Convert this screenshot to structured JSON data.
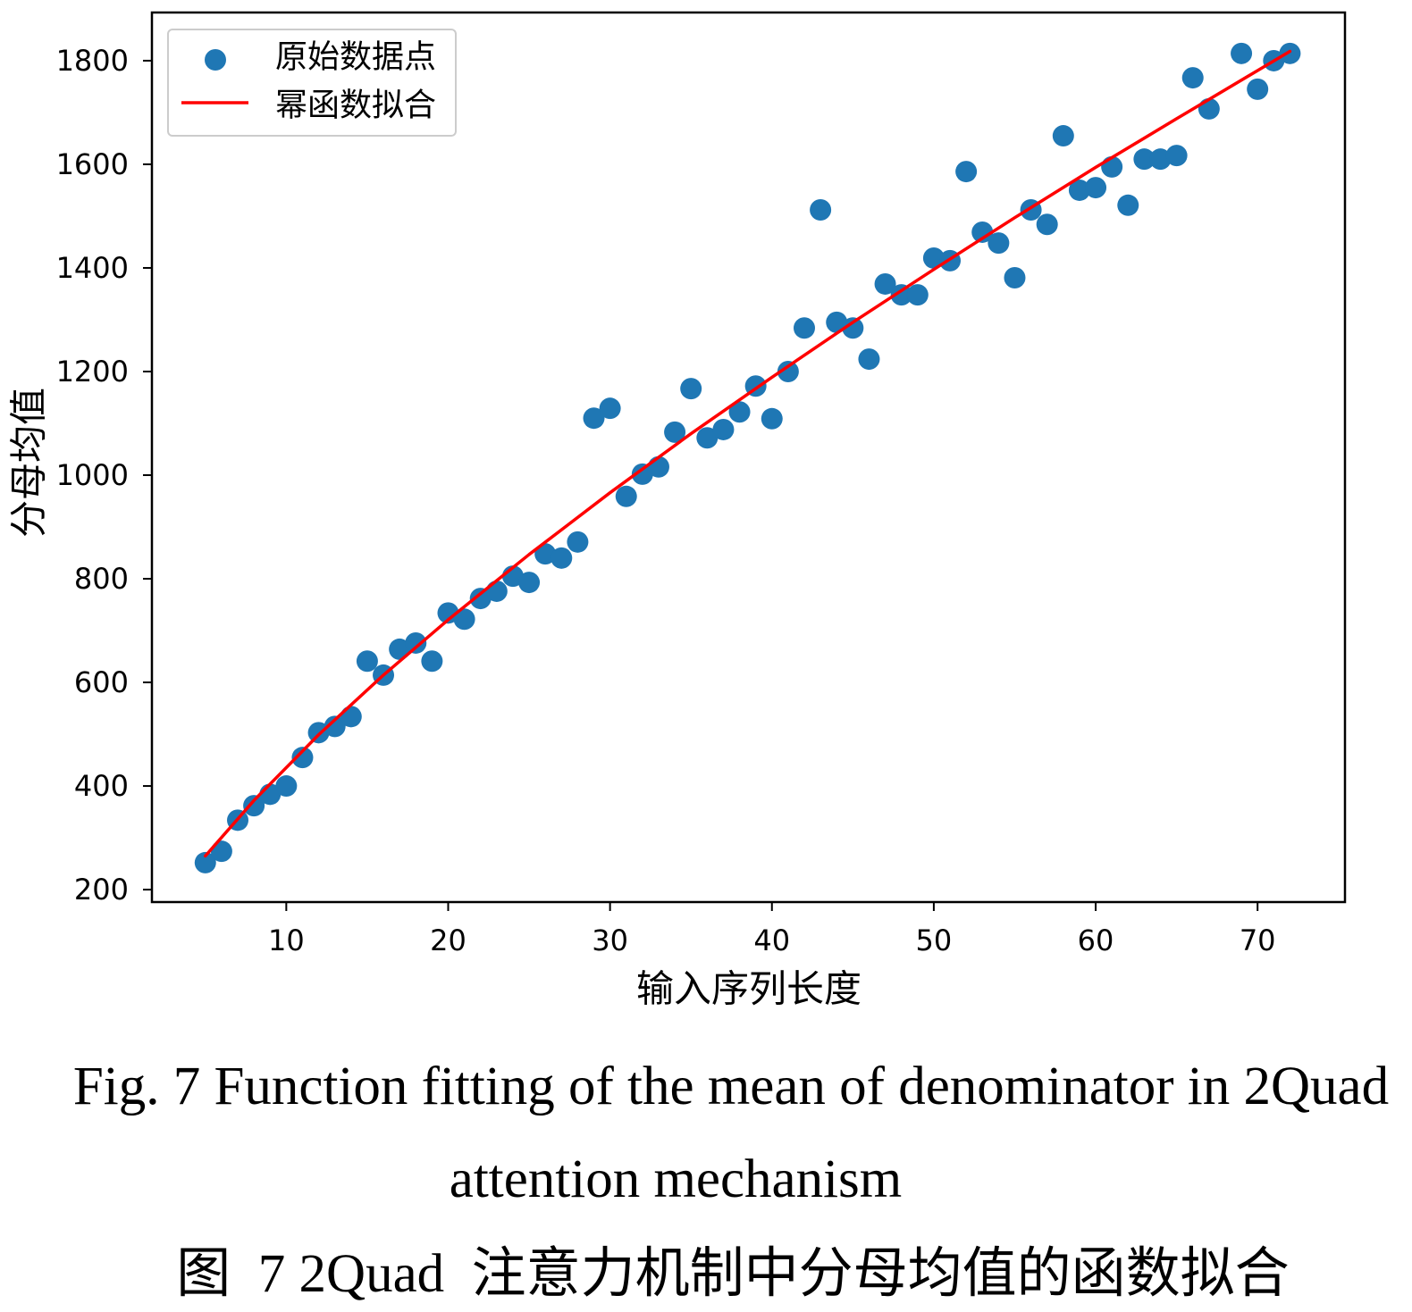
{
  "chart_data": {
    "type": "scatter",
    "title": "",
    "xlabel": "输入序列长度",
    "ylabel": "分母均值",
    "xlim": [
      1.7,
      75.4
    ],
    "ylim": [
      176,
      1893
    ],
    "xticks": [
      10,
      20,
      30,
      40,
      50,
      60,
      70
    ],
    "yticks": [
      200,
      400,
      600,
      800,
      1000,
      1200,
      1400,
      1600,
      1800
    ],
    "grid": false,
    "legend_position": "top-left",
    "series": [
      {
        "name": "原始数据点",
        "type": "scatter",
        "color": "#1f77b4",
        "x": [
          5,
          6,
          7,
          8,
          9,
          10,
          11,
          12,
          13,
          14,
          15,
          16,
          17,
          18,
          19,
          20,
          21,
          22,
          23,
          24,
          25,
          26,
          27,
          28,
          29,
          30,
          31,
          32,
          33,
          34,
          35,
          36,
          37,
          38,
          39,
          40,
          41,
          42,
          43,
          44,
          45,
          46,
          47,
          48,
          49,
          50,
          51,
          52,
          53,
          54,
          55,
          56,
          57,
          58,
          59,
          60,
          61,
          62,
          63,
          64,
          65,
          66,
          67,
          69,
          70,
          71,
          72
        ],
        "y": [
          252,
          274,
          334,
          362,
          384,
          400,
          455,
          503,
          515,
          534,
          641,
          614,
          664,
          676,
          641,
          734,
          722,
          762,
          776,
          805,
          793,
          848,
          840,
          871,
          1110,
          1129,
          959,
          1002,
          1016,
          1083,
          1167,
          1072,
          1088,
          1122,
          1172,
          1109,
          1200,
          1284,
          1512,
          1295,
          1284,
          1224,
          1369,
          1348,
          1348,
          1419,
          1414,
          1586,
          1469,
          1448,
          1381,
          1512,
          1484,
          1655,
          1550,
          1555,
          1595,
          1521,
          1610,
          1610,
          1617,
          1767,
          1707,
          1814,
          1745,
          1800,
          1814
        ]
      },
      {
        "name": "幂函数拟合",
        "type": "line",
        "color": "#ff0000",
        "x": [
          5,
          8,
          12,
          16,
          20,
          25,
          30,
          35,
          40,
          45,
          50,
          55,
          60,
          65,
          70,
          72
        ],
        "y": [
          265,
          372,
          499,
          614,
          721,
          847,
          966,
          1080,
          1189,
          1295,
          1397,
          1497,
          1594,
          1688,
          1781,
          1818
        ]
      }
    ]
  },
  "caption": {
    "en_line1": "Fig. 7 Function fitting of the mean of denominator in 2Quad",
    "en_line2": "attention mechanism",
    "zh": "图  7 2Quad  注意力机制中分母均值的函数拟合"
  }
}
